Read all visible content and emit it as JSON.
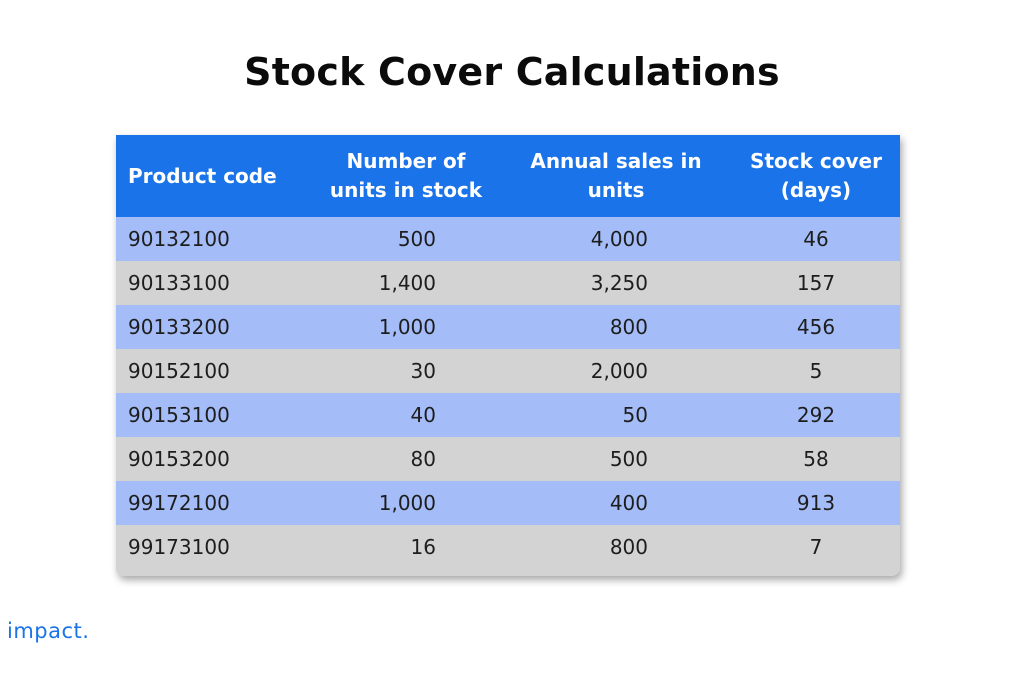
{
  "title": "Stock Cover Calculations",
  "table": {
    "headers": [
      "Product code",
      "Number of\nunits in stock",
      "Annual sales in\nunits",
      "Stock cover\n(days)"
    ],
    "rows": [
      [
        "90132100",
        "500",
        "4,000",
        "46"
      ],
      [
        "90133100",
        "1,400",
        "3,250",
        "157"
      ],
      [
        "90133200",
        "1,000",
        "800",
        "456"
      ],
      [
        "90152100",
        "30",
        "2,000",
        "5"
      ],
      [
        "90153100",
        "40",
        "50",
        "292"
      ],
      [
        "90153200",
        "80",
        "500",
        "58"
      ],
      [
        "99172100",
        "1,000",
        "400",
        "913"
      ],
      [
        "99173100",
        "16",
        "800",
        "7"
      ]
    ]
  },
  "colors": {
    "header_bg": "#1a73e8",
    "row_highlight": "#a4bcf8",
    "row_plain": "#d3d3d3",
    "brand": "#1a73e8"
  },
  "brand": "impact."
}
